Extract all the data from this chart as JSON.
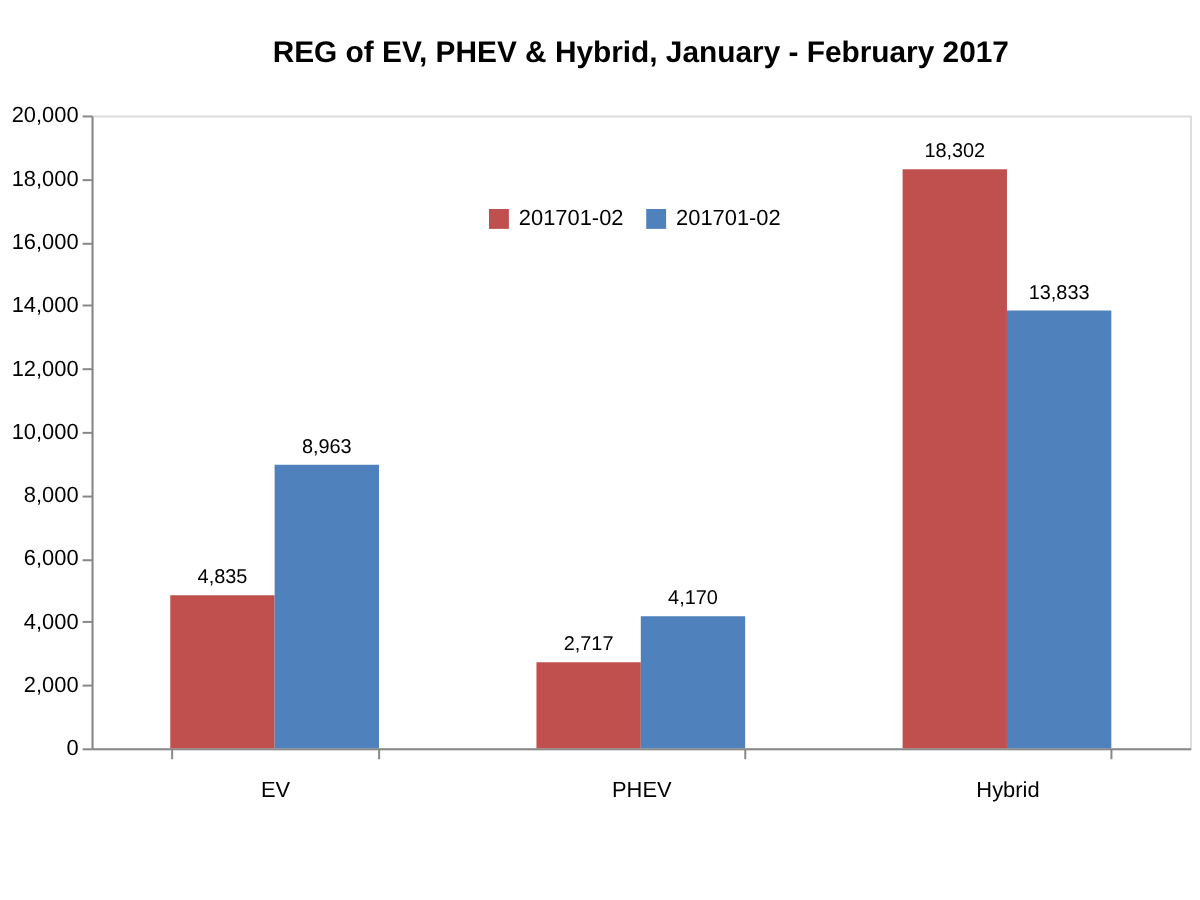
{
  "chart_data": {
    "type": "bar",
    "title": "REG of EV, PHEV & Hybrid, January - February 2017",
    "categories": [
      "EV",
      "PHEV",
      "Hybrid"
    ],
    "series": [
      {
        "name": "201701-02",
        "color": "#c0504d",
        "values": [
          4835,
          2717,
          18302
        ],
        "value_labels": [
          "4,835",
          "2,717",
          "18,302"
        ]
      },
      {
        "name": "201701-02",
        "color": "#4f81bd",
        "values": [
          8963,
          4170,
          13833
        ],
        "value_labels": [
          "8,963",
          "4,170",
          "13,833"
        ]
      }
    ],
    "ylim": [
      0,
      20000
    ],
    "yticks": [
      0,
      {
        "value": 2000,
        "label": "2,000"
      },
      {
        "value": 4000,
        "label": "4,000"
      },
      {
        "value": 6000,
        "label": "6,000"
      },
      {
        "value": 8000,
        "label": "8,000"
      },
      {
        "value": 10000,
        "label": "10,000"
      },
      {
        "value": 12000,
        "label": "12,000"
      },
      {
        "value": 14000,
        "label": "14,000"
      },
      {
        "value": 16000,
        "label": "16,000"
      },
      {
        "value": 18000,
        "label": "18,000"
      },
      {
        "value": 20000,
        "label": "20,000"
      }
    ],
    "legend": "top"
  }
}
